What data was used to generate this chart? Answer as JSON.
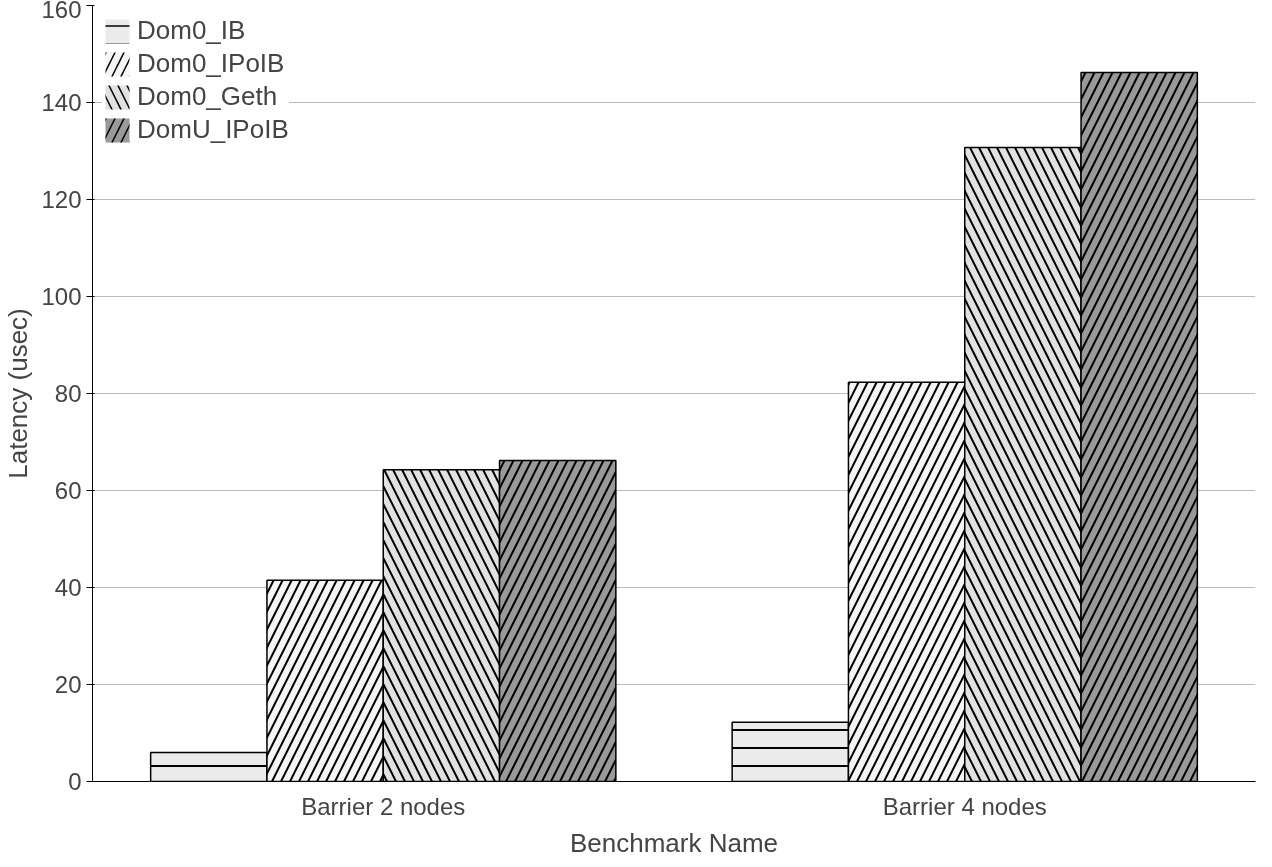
{
  "chart_data": {
    "type": "bar",
    "xlabel": "Benchmark Name",
    "ylabel": "Latency (usec)",
    "categories": [
      "Barrier 2 nodes",
      "Barrier 4 nodes"
    ],
    "series": [
      {
        "name": "Dom0_IB",
        "color": "#ebebeb",
        "values": [
          6,
          12.2
        ]
      },
      {
        "name": "Dom0_IPoIB",
        "color": "#f5f5f5",
        "values": [
          41.5,
          82.3
        ]
      },
      {
        "name": "Dom0_Geth",
        "color": "#e1e1e1",
        "values": [
          64.3,
          130.7
        ]
      },
      {
        "name": "DomU_IPoIB",
        "color": "#999999",
        "values": [
          66.2,
          146.2
        ]
      }
    ],
    "ylim": [
      0,
      160
    ],
    "yticks": [
      0,
      20,
      40,
      60,
      80,
      100,
      120,
      140,
      160
    ],
    "grid": "y",
    "legend": "top left"
  }
}
